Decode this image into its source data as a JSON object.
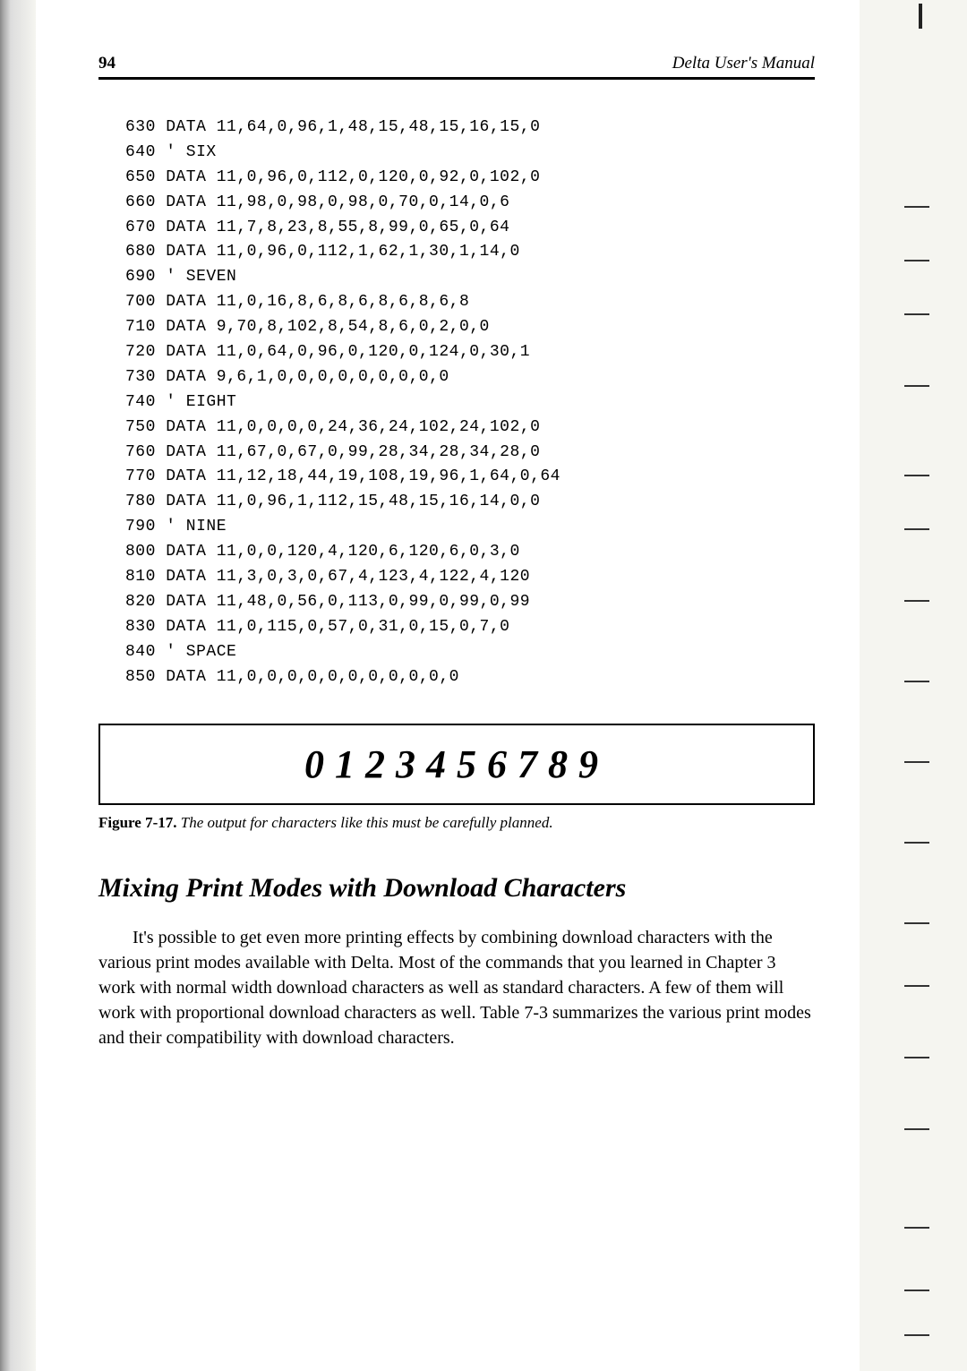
{
  "header": {
    "page_number": "94",
    "running_head": "Delta User's Manual"
  },
  "code_lines": [
    "630 DATA 11,64,0,96,1,48,15,48,15,16,15,0",
    "640 ' SIX",
    "650 DATA 11,0,96,0,112,0,120,0,92,0,102,0",
    "660 DATA 11,98,0,98,0,98,0,70,0,14,0,6",
    "670 DATA 11,7,8,23,8,55,8,99,0,65,0,64",
    "680 DATA 11,0,96,0,112,1,62,1,30,1,14,0",
    "690 ' SEVEN",
    "700 DATA 11,0,16,8,6,8,6,8,6,8,6,8",
    "710 DATA 9,70,8,102,8,54,8,6,0,2,0,0",
    "720 DATA 11,0,64,0,96,0,120,0,124,0,30,1",
    "730 DATA 9,6,1,0,0,0,0,0,0,0,0,0",
    "740 ' EIGHT",
    "750 DATA 11,0,0,0,0,24,36,24,102,24,102,0",
    "760 DATA 11,67,0,67,0,99,28,34,28,34,28,0",
    "770 DATA 11,12,18,44,19,108,19,96,1,64,0,64",
    "780 DATA 11,0,96,1,112,15,48,15,16,14,0,0",
    "790 ' NINE",
    "800 DATA 11,0,0,120,4,120,6,120,6,0,3,0",
    "810 DATA 11,3,0,3,0,67,4,123,4,122,4,120",
    "820 DATA 11,48,0,56,0,113,0,99,0,99,0,99",
    "830 DATA 11,0,115,0,57,0,31,0,15,0,7,0",
    "840 ' SPACE",
    "850 DATA 11,0,0,0,0,0,0,0,0,0,0,0"
  ],
  "figure": {
    "digits": "0123456789",
    "label": "Figure 7-17.",
    "caption": " The output for characters like this must be carefully planned."
  },
  "section": {
    "heading": "Mixing Print Modes with Download Characters",
    "paragraph": "It's possible to get even more printing effects by combining download characters with the various print modes available with Delta. Most of the commands that you learned in Chapter 3 work with normal width download characters as well as standard characters. A few of them will work with proportional download characters as well. Table 7-3 summarizes the various print modes and their compatibility with download characters."
  },
  "tick_positions": [
    230,
    290,
    350,
    430,
    530,
    590,
    670,
    760,
    850,
    940,
    1030,
    1100,
    1180,
    1260,
    1370,
    1440,
    1490
  ]
}
